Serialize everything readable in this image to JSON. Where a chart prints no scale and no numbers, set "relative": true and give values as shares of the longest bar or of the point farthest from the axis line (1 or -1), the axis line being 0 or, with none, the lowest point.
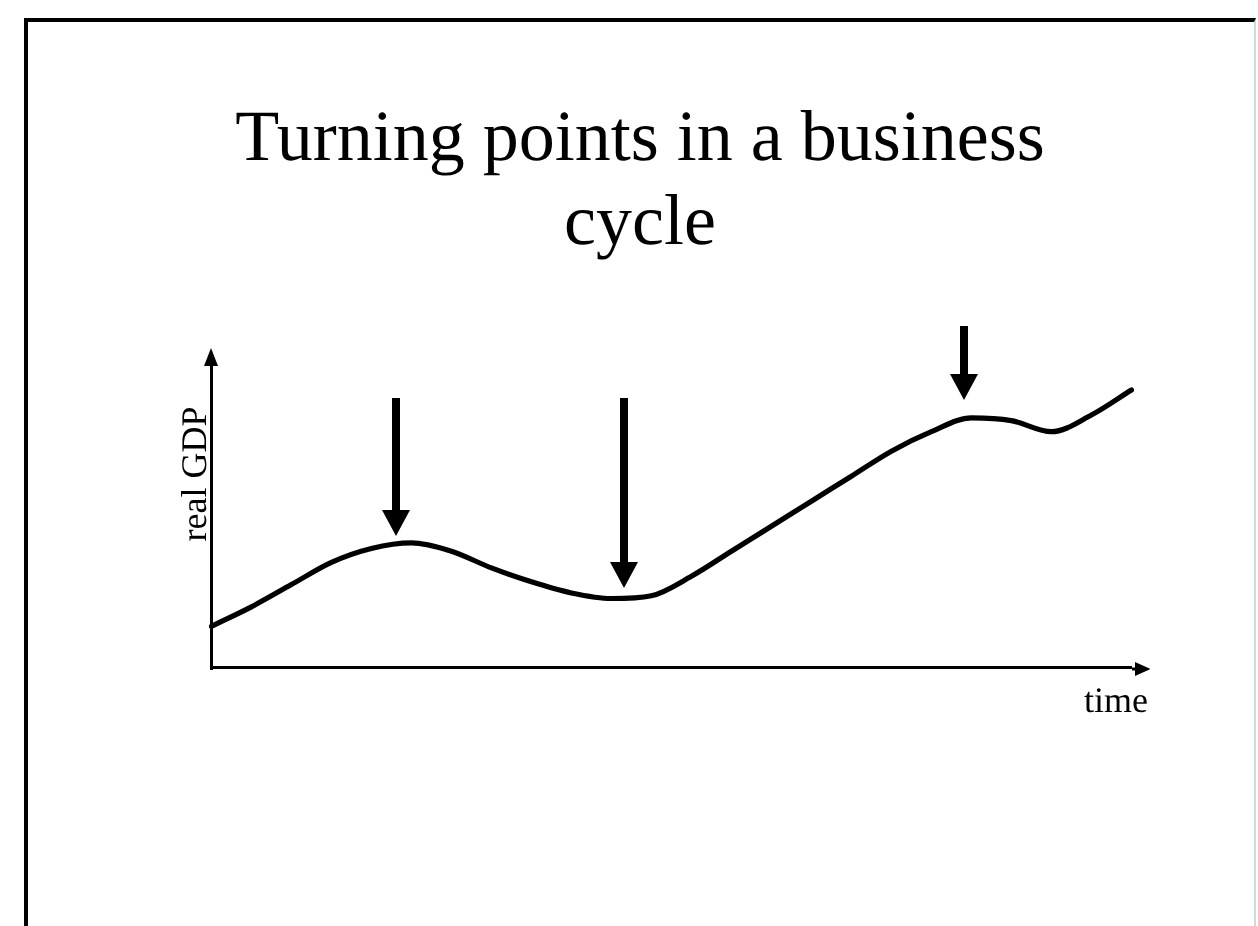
{
  "chart_data": {
    "type": "line",
    "title": "Turning points in a business cycle",
    "xlabel": "time",
    "ylabel": "real GDP",
    "relative": true,
    "categories": [
      null,
      null,
      null,
      null,
      null,
      null,
      null,
      null,
      null,
      null,
      null,
      null,
      null,
      null,
      null,
      null,
      null,
      null,
      null,
      null,
      null,
      null,
      null,
      null
    ],
    "values": [
      0.15,
      0.22,
      0.3,
      0.38,
      0.43,
      0.45,
      0.42,
      0.36,
      0.31,
      0.27,
      0.25,
      0.26,
      0.33,
      0.42,
      0.51,
      0.6,
      0.69,
      0.78,
      0.85,
      0.9,
      0.89,
      0.85,
      0.91,
      1
    ],
    "color": "#000000"
  }
}
